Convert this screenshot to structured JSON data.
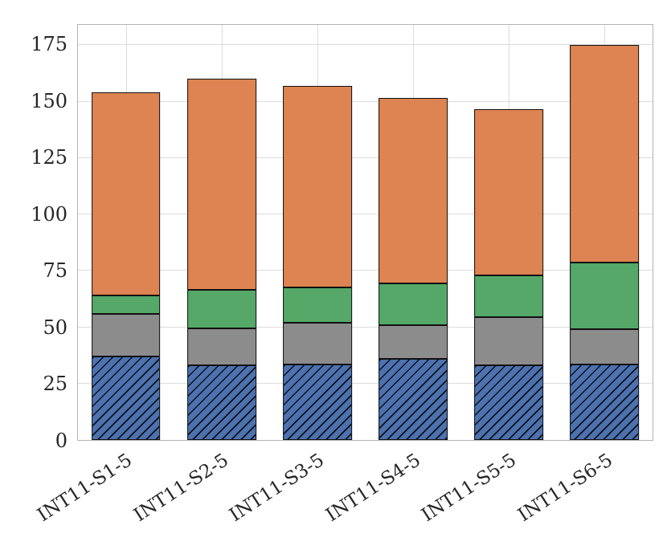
{
  "chart_data": {
    "type": "bar",
    "stacked": true,
    "title": "",
    "xlabel": "",
    "ylabel": "",
    "categories": [
      "INT11-S1-5",
      "INT11-S2-5",
      "INT11-S3-5",
      "INT11-S4-5",
      "INT11-S5-5",
      "INT11-S6-5"
    ],
    "series": [
      {
        "name": "blue-hatched",
        "color": "#4C72B0",
        "hatch": "//",
        "values": [
          37,
          33,
          33.5,
          36,
          33,
          33.5
        ]
      },
      {
        "name": "gray",
        "color": "#8C8C8C",
        "hatch": "",
        "values": [
          19,
          16.5,
          18.5,
          15,
          21.5,
          15.5
        ]
      },
      {
        "name": "green",
        "color": "#55A868",
        "hatch": "",
        "values": [
          8,
          17,
          15.5,
          18.5,
          18.5,
          29.5
        ]
      },
      {
        "name": "orange",
        "color": "#DD8452",
        "hatch": "",
        "values": [
          90,
          93.5,
          89.5,
          82,
          73.5,
          96.5
        ]
      }
    ],
    "totals": [
      154,
      160,
      157,
      151.5,
      146.5,
      175
    ],
    "yticks": [
      0,
      25,
      50,
      75,
      100,
      125,
      150,
      175
    ],
    "ylim": [
      0,
      184
    ],
    "bar_width_fraction": 0.72,
    "grid": true,
    "legend": "none",
    "edge_color": "#111111",
    "grid_color": "#dcdcdc",
    "x_label_rotation_deg": -33
  }
}
